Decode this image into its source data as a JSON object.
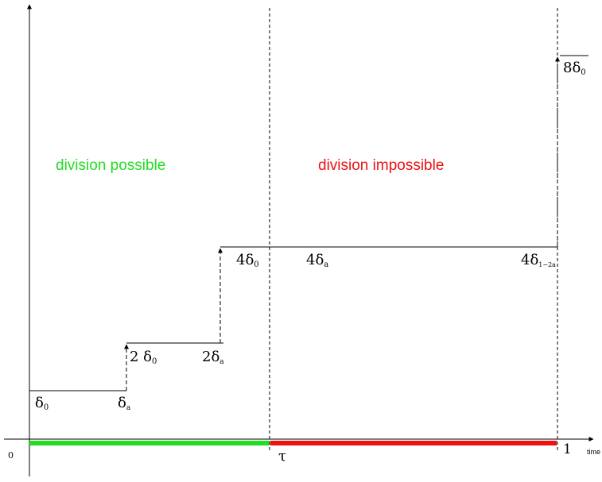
{
  "axis": {
    "origin_label": "0",
    "end_label": "1",
    "time_label": "time",
    "tau_label": "τ"
  },
  "regions": {
    "possible": {
      "label": "division possible",
      "color": "#22dd22"
    },
    "impossible": {
      "label": "division impossible",
      "color": "#ee1111"
    }
  },
  "steps": [
    {
      "left_label_main": "δ",
      "left_label_sub": "0",
      "right_label_main": "δ",
      "right_label_sub": "a"
    },
    {
      "left_label_main": "2 δ",
      "left_label_sub": "0",
      "right_label_main": "2δ",
      "right_label_sub": "a"
    },
    {
      "left_label_main": "4δ",
      "left_label_sub": "0",
      "mid_label_main": "4δ",
      "mid_label_sub": "a",
      "right_label_main": "4δ",
      "right_label_sub": "1−2a"
    },
    {
      "label_main": "8δ",
      "label_sub": "0"
    }
  ]
}
